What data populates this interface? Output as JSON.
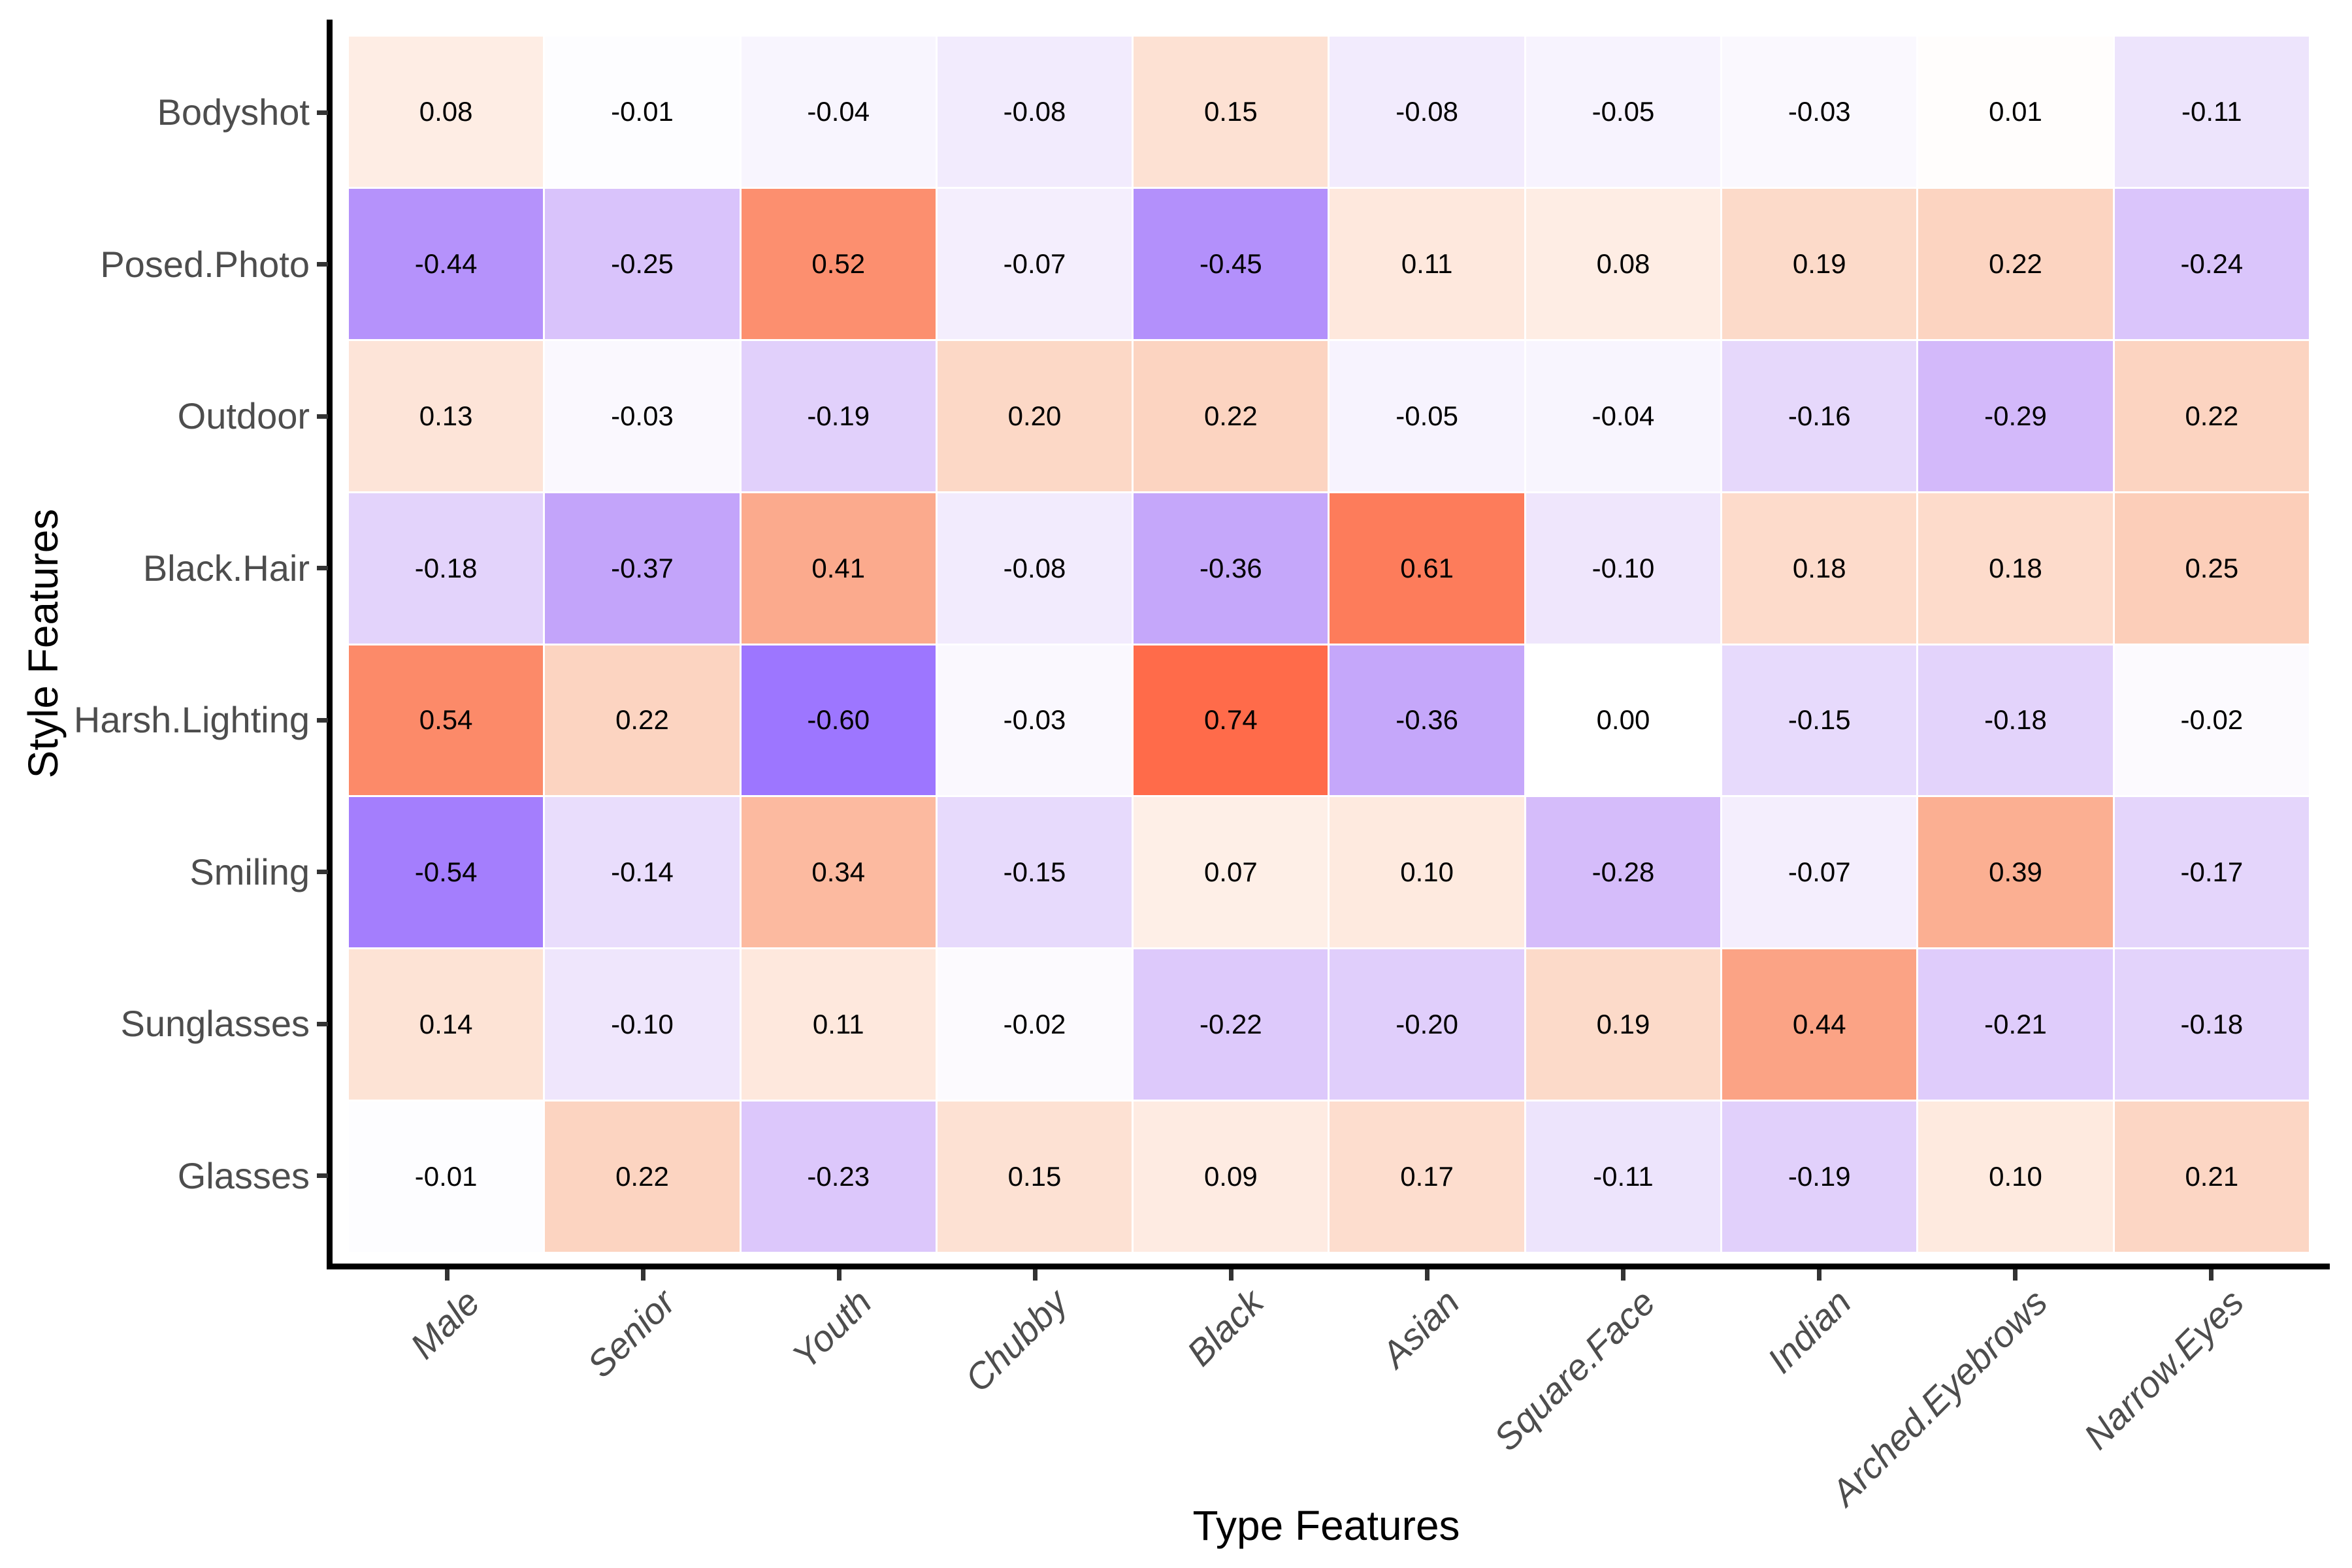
{
  "chart_data": {
    "type": "heatmap",
    "title": "",
    "xlabel": "Type Features",
    "ylabel": "Style Features",
    "x_categories": [
      "Male",
      "Senior",
      "Youth",
      "Chubby",
      "Black",
      "Asian",
      "Square.Face",
      "Indian",
      "Arched.Eyebrows",
      "Narrow.Eyes"
    ],
    "y_categories": [
      "Bodyshot",
      "Posed.Photo",
      "Outdoor",
      "Black.Hair",
      "Harsh.Lighting",
      "Smiling",
      "Sunglasses",
      "Glasses"
    ],
    "values": [
      [
        0.08,
        -0.01,
        -0.04,
        -0.08,
        0.15,
        -0.08,
        -0.05,
        -0.03,
        0.01,
        -0.11
      ],
      [
        -0.44,
        -0.25,
        0.52,
        -0.07,
        -0.45,
        0.11,
        0.08,
        0.19,
        0.22,
        -0.24
      ],
      [
        0.13,
        -0.03,
        -0.19,
        0.2,
        0.22,
        -0.05,
        -0.04,
        -0.16,
        -0.29,
        0.22
      ],
      [
        -0.18,
        -0.37,
        0.41,
        -0.08,
        -0.36,
        0.61,
        -0.1,
        0.18,
        0.18,
        0.25
      ],
      [
        0.54,
        0.22,
        -0.6,
        -0.03,
        0.74,
        -0.36,
        0.0,
        -0.15,
        -0.18,
        -0.02
      ],
      [
        -0.54,
        -0.14,
        0.34,
        -0.15,
        0.07,
        0.1,
        -0.28,
        -0.07,
        0.39,
        -0.17
      ],
      [
        0.14,
        -0.1,
        0.11,
        -0.02,
        -0.22,
        -0.2,
        0.19,
        0.44,
        -0.21,
        -0.18
      ],
      [
        -0.01,
        0.22,
        -0.23,
        0.15,
        0.09,
        0.17,
        -0.11,
        -0.19,
        0.1,
        0.21
      ]
    ],
    "value_decimals": 2,
    "value_range": [
      -0.6,
      0.74
    ],
    "legend": "none",
    "grid": false,
    "color_scale": {
      "mid": "#FFFFFF",
      "negative_stops": [
        [
          0.0,
          "#FFFFFF"
        ],
        [
          0.11,
          "#EDE4FC"
        ],
        [
          0.2,
          "#E0CEFB"
        ],
        [
          0.3,
          "#D2B7FA"
        ],
        [
          0.4,
          "#BD9CFA"
        ],
        [
          0.5,
          "#A884FC"
        ],
        [
          0.6,
          "#9D76FF"
        ],
        [
          1.0,
          "#7A46FA"
        ]
      ],
      "positive_stops": [
        [
          0.0,
          "#FFFFFF"
        ],
        [
          0.08,
          "#FEEDE4"
        ],
        [
          0.15,
          "#FDE1D3"
        ],
        [
          0.22,
          "#FCD4C1"
        ],
        [
          0.34,
          "#FCBAA0"
        ],
        [
          0.41,
          "#FBAA8D"
        ],
        [
          0.54,
          "#FC8A69"
        ],
        [
          0.61,
          "#FD7C5B"
        ],
        [
          0.74,
          "#FF6B4A"
        ],
        [
          1.0,
          "#FF4F28"
        ]
      ]
    },
    "axis_style": {
      "line_color": "#000000",
      "tick_color": "#333333",
      "tick_label_color": "#4d4d4d",
      "title_color": "#000000",
      "cell_text_color": "#000000"
    }
  }
}
